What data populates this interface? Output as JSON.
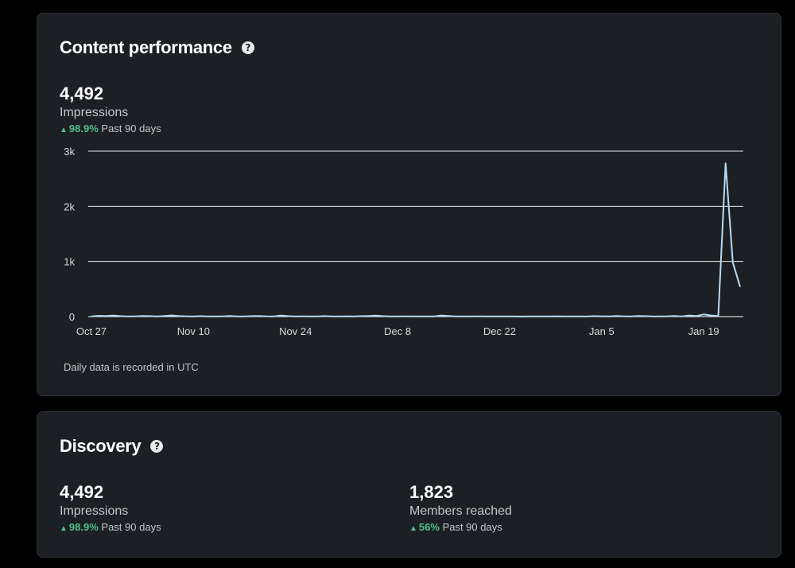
{
  "content_card": {
    "title": "Content performance",
    "help_glyph": "?",
    "metric": {
      "value": "4,492",
      "label": "Impressions",
      "change": "98.9%",
      "period": "Past 90 days",
      "trend": "up"
    },
    "footnote": "Daily data is recorded in UTC"
  },
  "discovery_card": {
    "title": "Discovery",
    "help_glyph": "?",
    "metrics": [
      {
        "value": "4,492",
        "label": "Impressions",
        "change": "98.9%",
        "period": "Past 90 days",
        "trend": "up"
      },
      {
        "value": "1,823",
        "label": "Members reached",
        "change": "56%",
        "period": "Past 90 days",
        "trend": "up"
      }
    ]
  },
  "colors": {
    "background": "#000000",
    "card": "#1c1f23",
    "line": "#b5dcf5",
    "gridline": "#ffffff",
    "positive": "#4ec08b",
    "text_secondary": "#c4c6c8"
  },
  "chart_data": {
    "type": "line",
    "x_ticks": [
      "Oct 27",
      "Nov 10",
      "Nov 24",
      "Dec 8",
      "Dec 22",
      "Jan 5",
      "Jan 19"
    ],
    "y_ticks": [
      "0",
      "1k",
      "2k",
      "3k"
    ],
    "ylim": [
      0,
      3000
    ],
    "xlim": [
      "Oct 27",
      "Jan 24"
    ],
    "grid": true,
    "series": [
      {
        "values": [
          [
            "Oct 27",
            5
          ],
          [
            "Oct 28",
            15
          ],
          [
            "Oct 29",
            10
          ],
          [
            "Oct 30",
            20
          ],
          [
            "Oct 31",
            8
          ],
          [
            "Nov 1",
            5
          ],
          [
            "Nov 2",
            6
          ],
          [
            "Nov 3",
            10
          ],
          [
            "Nov 4",
            8
          ],
          [
            "Nov 5",
            5
          ],
          [
            "Nov 6",
            12
          ],
          [
            "Nov 7",
            22
          ],
          [
            "Nov 8",
            10
          ],
          [
            "Nov 9",
            6
          ],
          [
            "Nov 10",
            5
          ],
          [
            "Nov 11",
            8
          ],
          [
            "Nov 12",
            5
          ],
          [
            "Nov 13",
            4
          ],
          [
            "Nov 14",
            6
          ],
          [
            "Nov 15",
            10
          ],
          [
            "Nov 16",
            5
          ],
          [
            "Nov 17",
            3
          ],
          [
            "Nov 18",
            8
          ],
          [
            "Nov 19",
            12
          ],
          [
            "Nov 20",
            6
          ],
          [
            "Nov 21",
            4
          ],
          [
            "Nov 22",
            20
          ],
          [
            "Nov 23",
            8
          ],
          [
            "Nov 24",
            5
          ],
          [
            "Nov 25",
            6
          ],
          [
            "Nov 26",
            4
          ],
          [
            "Nov 27",
            5
          ],
          [
            "Nov 28",
            8
          ],
          [
            "Nov 29",
            4
          ],
          [
            "Nov 30",
            3
          ],
          [
            "Dec 1",
            6
          ],
          [
            "Dec 2",
            5
          ],
          [
            "Dec 3",
            8
          ],
          [
            "Dec 4",
            12
          ],
          [
            "Dec 5",
            18
          ],
          [
            "Dec 6",
            8
          ],
          [
            "Dec 7",
            5
          ],
          [
            "Dec 8",
            4
          ],
          [
            "Dec 9",
            6
          ],
          [
            "Dec 10",
            5
          ],
          [
            "Dec 11",
            3
          ],
          [
            "Dec 12",
            4
          ],
          [
            "Dec 13",
            5
          ],
          [
            "Dec 14",
            20
          ],
          [
            "Dec 15",
            12
          ],
          [
            "Dec 16",
            5
          ],
          [
            "Dec 17",
            3
          ],
          [
            "Dec 18",
            4
          ],
          [
            "Dec 19",
            6
          ],
          [
            "Dec 20",
            5
          ],
          [
            "Dec 21",
            3
          ],
          [
            "Dec 22",
            4
          ],
          [
            "Dec 23",
            5
          ],
          [
            "Dec 24",
            3
          ],
          [
            "Dec 25",
            2
          ],
          [
            "Dec 26",
            3
          ],
          [
            "Dec 27",
            5
          ],
          [
            "Dec 28",
            4
          ],
          [
            "Dec 29",
            3
          ],
          [
            "Dec 30",
            6
          ],
          [
            "Dec 31",
            5
          ],
          [
            "Jan 1",
            3
          ],
          [
            "Jan 2",
            4
          ],
          [
            "Jan 3",
            5
          ],
          [
            "Jan 4",
            8
          ],
          [
            "Jan 5",
            6
          ],
          [
            "Jan 6",
            5
          ],
          [
            "Jan 7",
            10
          ],
          [
            "Jan 8",
            6
          ],
          [
            "Jan 9",
            4
          ],
          [
            "Jan 10",
            12
          ],
          [
            "Jan 11",
            8
          ],
          [
            "Jan 12",
            5
          ],
          [
            "Jan 13",
            4
          ],
          [
            "Jan 14",
            6
          ],
          [
            "Jan 15",
            10
          ],
          [
            "Jan 16",
            5
          ],
          [
            "Jan 17",
            20
          ],
          [
            "Jan 18",
            10
          ],
          [
            "Jan 19",
            40
          ],
          [
            "Jan 20",
            20
          ],
          [
            "Jan 21",
            10
          ],
          [
            "Jan 22",
            2780
          ],
          [
            "Jan 23",
            980
          ],
          [
            "Jan 24",
            540
          ]
        ]
      }
    ]
  }
}
